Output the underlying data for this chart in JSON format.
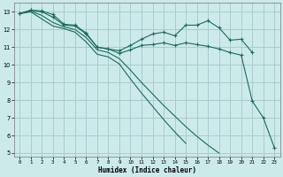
{
  "xlabel": "Humidex (Indice chaleur)",
  "bg_color": "#cceaea",
  "grid_color": "#aacccc",
  "line_color": "#1a6b5a",
  "xlim": [
    -0.5,
    23.5
  ],
  "ylim": [
    4.8,
    13.5
  ],
  "yticks": [
    5,
    6,
    7,
    8,
    9,
    10,
    11,
    12,
    13
  ],
  "xticks": [
    0,
    1,
    2,
    3,
    4,
    5,
    6,
    7,
    8,
    9,
    10,
    11,
    12,
    13,
    14,
    15,
    16,
    17,
    18,
    19,
    20,
    21,
    22,
    23
  ],
  "series": [
    {
      "x": [
        0,
        1,
        2,
        3,
        4,
        5,
        6,
        7,
        8,
        9,
        10,
        11,
        12,
        13,
        14,
        15,
        16,
        17,
        18,
        19,
        20,
        21
      ],
      "y": [
        12.9,
        13.1,
        13.05,
        12.85,
        12.3,
        12.25,
        11.8,
        11.0,
        10.9,
        10.8,
        11.1,
        11.45,
        11.75,
        11.85,
        11.65,
        12.25,
        12.25,
        12.5,
        12.1,
        11.4,
        11.45,
        10.7
      ],
      "marker": true
    },
    {
      "x": [
        0,
        1,
        2,
        3,
        4,
        5,
        6,
        7,
        8,
        9,
        10,
        11,
        12,
        13,
        14,
        15,
        16,
        17,
        18,
        19,
        20,
        21,
        22,
        23
      ],
      "y": [
        12.9,
        13.1,
        13.0,
        12.7,
        12.25,
        12.2,
        11.75,
        11.0,
        10.9,
        10.65,
        10.85,
        11.1,
        11.15,
        11.25,
        11.1,
        11.25,
        11.15,
        11.05,
        10.9,
        10.7,
        10.55,
        7.95,
        7.0,
        5.3
      ],
      "marker": true
    },
    {
      "x": [
        0,
        1,
        2,
        3,
        4,
        5,
        6,
        7,
        8,
        9,
        10,
        11,
        12,
        13,
        14,
        15,
        16,
        17,
        18
      ],
      "y": [
        12.9,
        13.05,
        12.8,
        12.4,
        12.15,
        12.0,
        11.55,
        10.85,
        10.7,
        10.35,
        9.7,
        9.0,
        8.35,
        7.7,
        7.1,
        6.5,
        5.95,
        5.45,
        5.0
      ],
      "marker": false
    },
    {
      "x": [
        0,
        1,
        2,
        3,
        4,
        5,
        6,
        7,
        8,
        9,
        10,
        11,
        12,
        13,
        14,
        15
      ],
      "y": [
        12.9,
        13.0,
        12.6,
        12.2,
        12.05,
        11.85,
        11.3,
        10.6,
        10.45,
        10.05,
        9.2,
        8.4,
        7.65,
        6.9,
        6.2,
        5.55
      ],
      "marker": false
    }
  ]
}
